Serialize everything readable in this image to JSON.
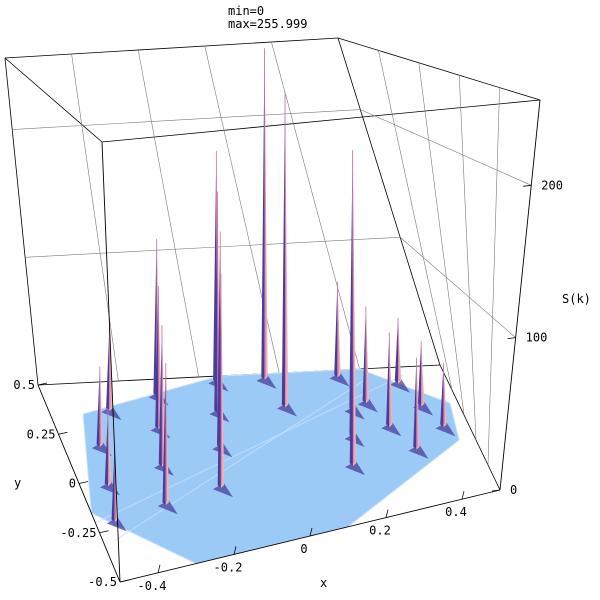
{
  "chart_data": {
    "type": "surface3d",
    "range_info": {
      "min_label": "min=0",
      "max_label": "max=255.999"
    },
    "xlabel": "x",
    "ylabel": "y",
    "zlabel": "S(k)",
    "x_ticks": [
      "-0.4",
      "-0.2",
      "0",
      "0.2",
      "0.4"
    ],
    "y_ticks": [
      "-0.5",
      "-0.25",
      "0",
      "0.25",
      "0.5"
    ],
    "z_ticks": [
      "0",
      "100",
      "200"
    ],
    "xlim": [
      -0.5,
      0.5
    ],
    "ylim": [
      -0.5,
      0.5
    ],
    "zlim": [
      0,
      256
    ],
    "colors": {
      "base": "#9ccaf7",
      "peak_light": "#f4b0b8",
      "peak_dark": "#4a3d9a",
      "peak_mid": "#d07aa6"
    },
    "peaks": [
      {
        "x": -0.35,
        "y": 0.36,
        "z": 60
      },
      {
        "x": -0.41,
        "y": 0.18,
        "z": 55
      },
      {
        "x": -0.43,
        "y": -0.02,
        "z": 50
      },
      {
        "x": -0.45,
        "y": -0.2,
        "z": 48
      },
      {
        "x": -0.22,
        "y": 0.42,
        "z": 118
      },
      {
        "x": -0.25,
        "y": 0.24,
        "z": 102
      },
      {
        "x": -0.28,
        "y": 0.04,
        "z": 95
      },
      {
        "x": -0.31,
        "y": -0.16,
        "z": 90
      },
      {
        "x": -0.06,
        "y": 0.48,
        "z": 178
      },
      {
        "x": -0.09,
        "y": 0.3,
        "z": 162
      },
      {
        "x": -0.12,
        "y": 0.1,
        "z": 150
      },
      {
        "x": -0.16,
        "y": -0.12,
        "z": 140
      },
      {
        "x": 0.06,
        "y": 0.48,
        "z": 256
      },
      {
        "x": 0.08,
        "y": 0.3,
        "z": 232
      },
      {
        "x": 0.24,
        "y": 0.24,
        "z": 190
      },
      {
        "x": 0.21,
        "y": 0.06,
        "z": 170
      },
      {
        "x": 0.18,
        "y": -0.12,
        "z": 160
      },
      {
        "x": 0.24,
        "y": 0.47,
        "z": 72
      },
      {
        "x": 0.28,
        "y": 0.28,
        "z": 70
      },
      {
        "x": 0.31,
        "y": 0.1,
        "z": 66
      },
      {
        "x": 0.35,
        "y": -0.08,
        "z": 62
      },
      {
        "x": 0.38,
        "y": 0.4,
        "z": 48
      },
      {
        "x": 0.41,
        "y": 0.22,
        "z": 46
      },
      {
        "x": 0.44,
        "y": 0.05,
        "z": 44
      }
    ]
  }
}
